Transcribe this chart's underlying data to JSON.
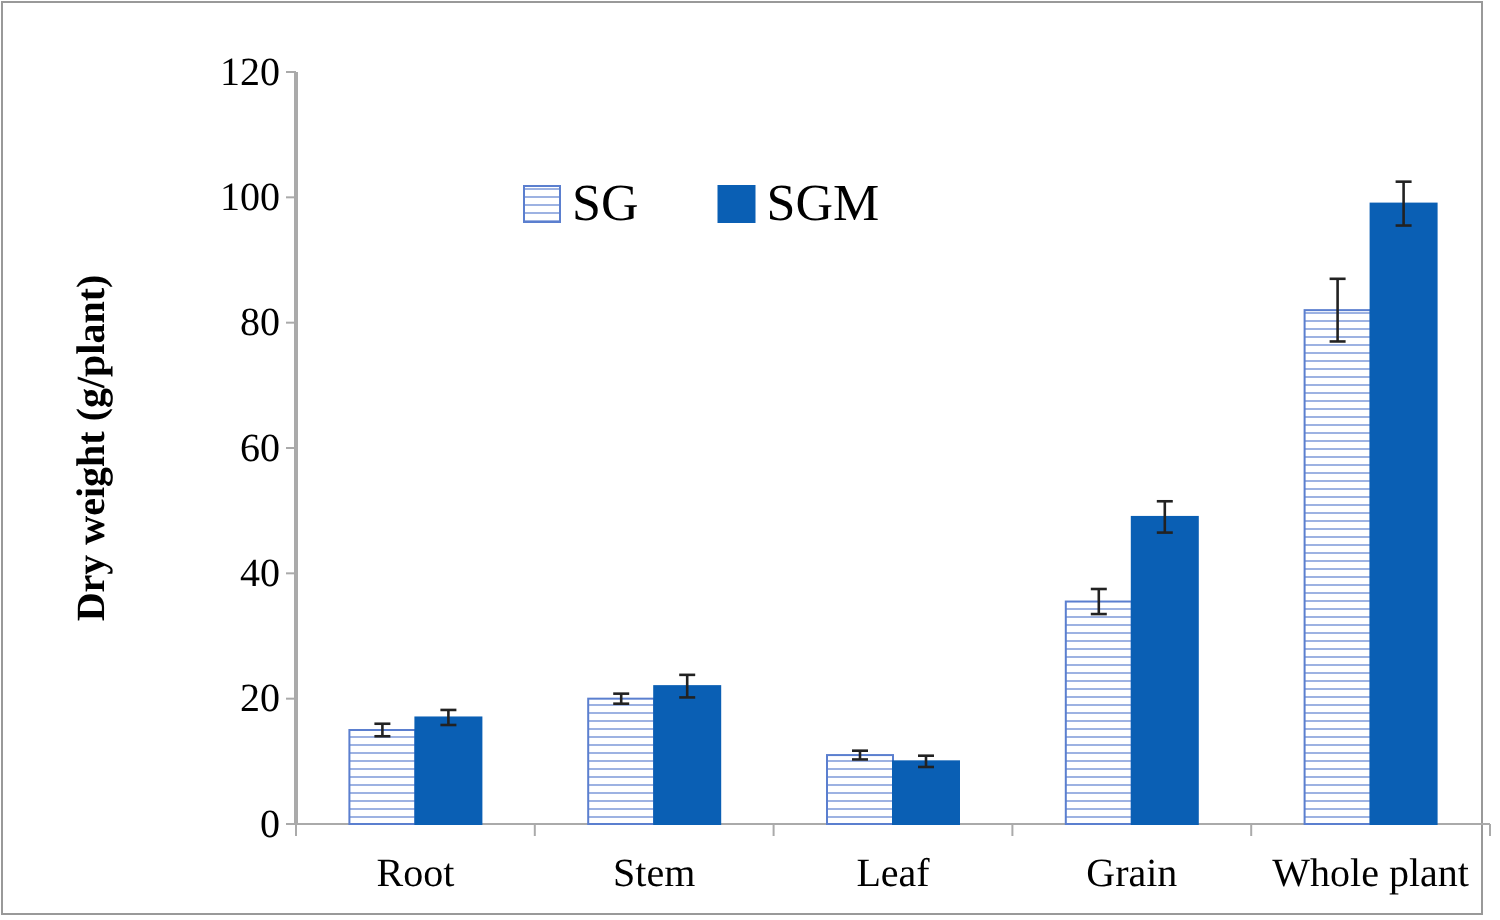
{
  "chart_data": {
    "type": "bar",
    "ylabel": "Dry weight (g/plant)",
    "categories": [
      "Root",
      "Stem",
      "Leaf",
      "Grain",
      "Whole plant"
    ],
    "series": [
      {
        "name": "SG",
        "color": "#5b7fcf",
        "values": [
          15,
          20,
          11,
          35.5,
          82
        ],
        "errors": [
          1,
          0.8,
          0.7,
          2,
          5
        ]
      },
      {
        "name": "SGM",
        "color": "#0a5fb4",
        "values": [
          17,
          22,
          10,
          49,
          99
        ],
        "errors": [
          1.2,
          1.8,
          0.9,
          2.5,
          3.5
        ]
      }
    ],
    "ylim": [
      0,
      120
    ],
    "yticks": [
      0,
      20,
      40,
      60,
      80,
      100,
      120
    ],
    "legend": "top",
    "grid": false
  }
}
